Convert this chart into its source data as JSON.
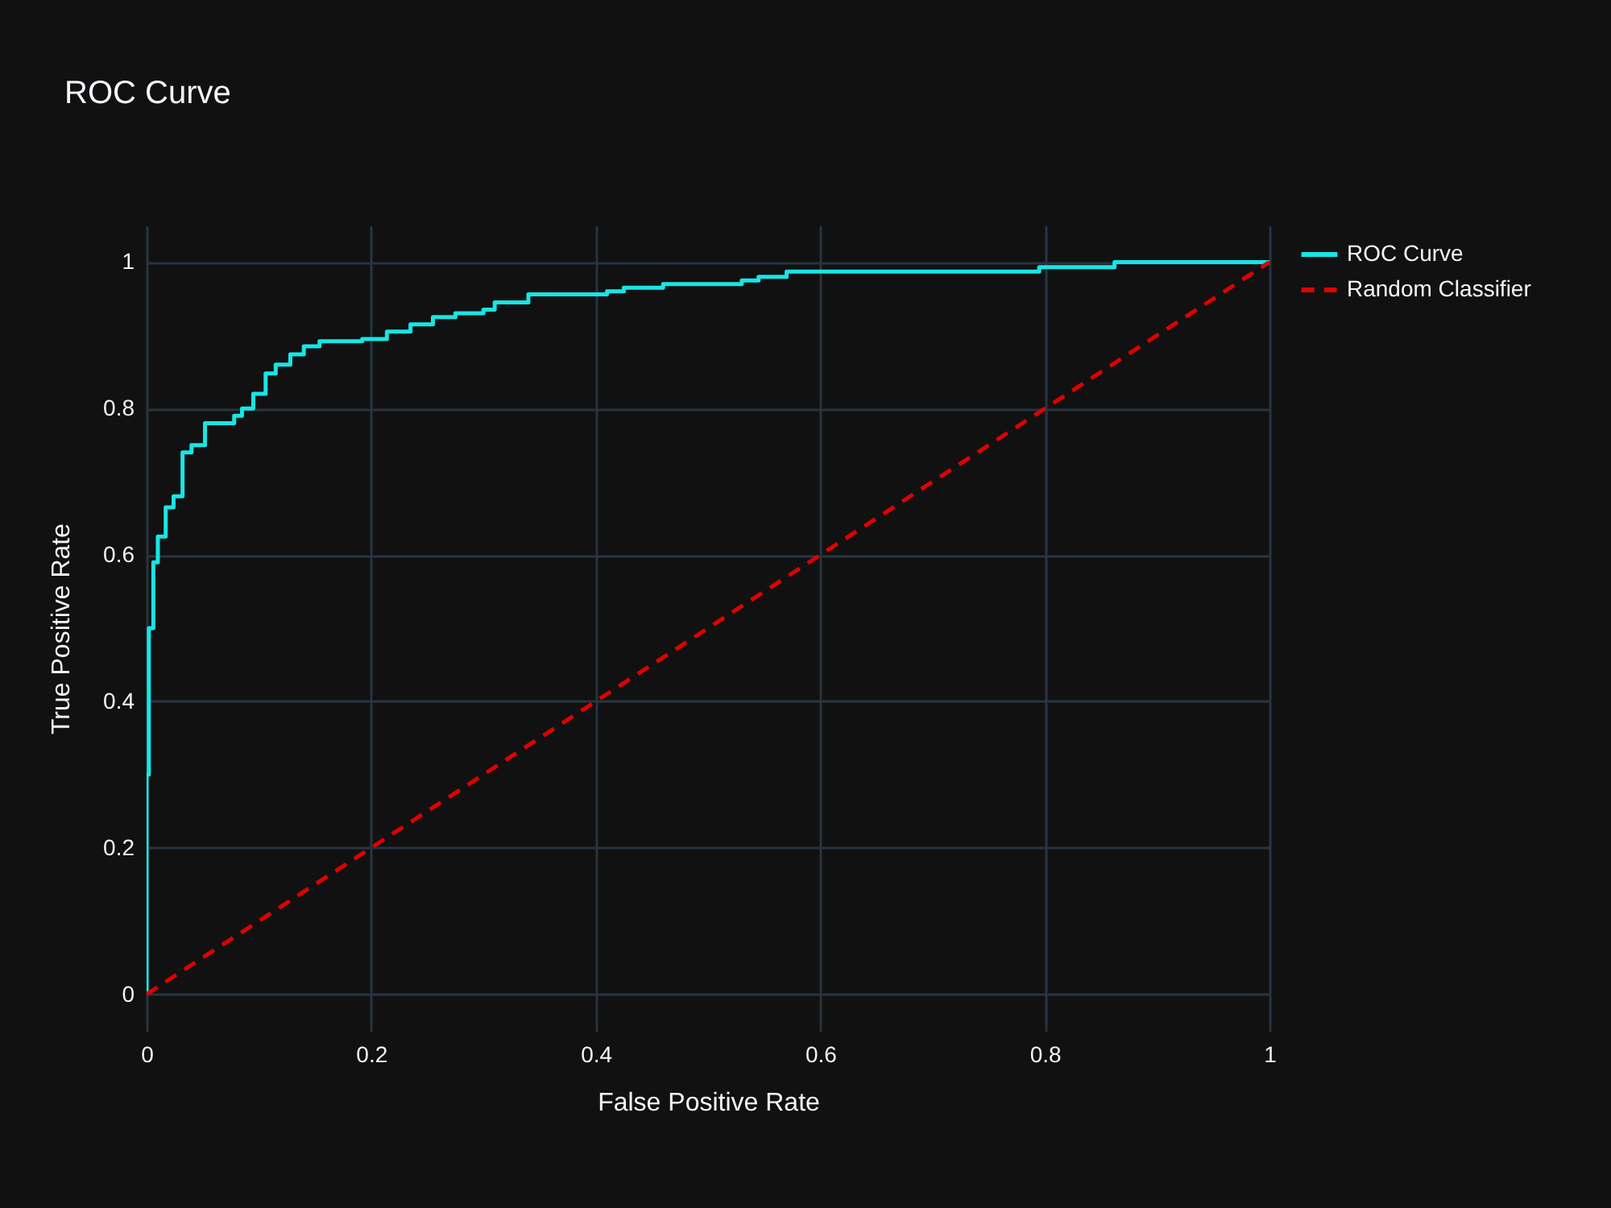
{
  "chart_data": {
    "type": "line",
    "title": "ROC Curve",
    "xlabel": "False Positive Rate",
    "ylabel": "True Positive Rate",
    "xlim": [
      0,
      1
    ],
    "ylim": [
      -0.05,
      1.05
    ],
    "xticks": [
      0,
      0.2,
      0.4,
      0.6,
      0.8,
      1
    ],
    "yticks": [
      0,
      0.2,
      0.4,
      0.6,
      0.8,
      1
    ],
    "grid": true,
    "legend": "top right",
    "marker": "none",
    "series": [
      {
        "name": "ROC Curve",
        "type": "step",
        "color": "#17e5e5",
        "line_style": "solid",
        "x": [
          0,
          0,
          0.002,
          0.006,
          0.01,
          0.017,
          0.024,
          0.032,
          0.04,
          0.052,
          0.078,
          0.085,
          0.095,
          0.106,
          0.115,
          0.128,
          0.14,
          0.154,
          0.192,
          0.214,
          0.235,
          0.255,
          0.275,
          0.3,
          0.31,
          0.34,
          0.41,
          0.425,
          0.46,
          0.53,
          0.545,
          0.57,
          0.795,
          0.862,
          1
        ],
        "values": [
          0,
          0.3,
          0.5,
          0.59,
          0.625,
          0.665,
          0.68,
          0.74,
          0.75,
          0.78,
          0.79,
          0.8,
          0.82,
          0.848,
          0.86,
          0.874,
          0.885,
          0.892,
          0.895,
          0.905,
          0.915,
          0.925,
          0.93,
          0.935,
          0.945,
          0.956,
          0.96,
          0.965,
          0.97,
          0.975,
          0.98,
          0.987,
          0.993,
          1,
          1
        ]
      },
      {
        "name": "Random Classifier",
        "type": "line",
        "color": "#e00000",
        "line_style": "dashed",
        "x": [
          0,
          1
        ],
        "values": [
          0,
          1
        ]
      }
    ]
  }
}
